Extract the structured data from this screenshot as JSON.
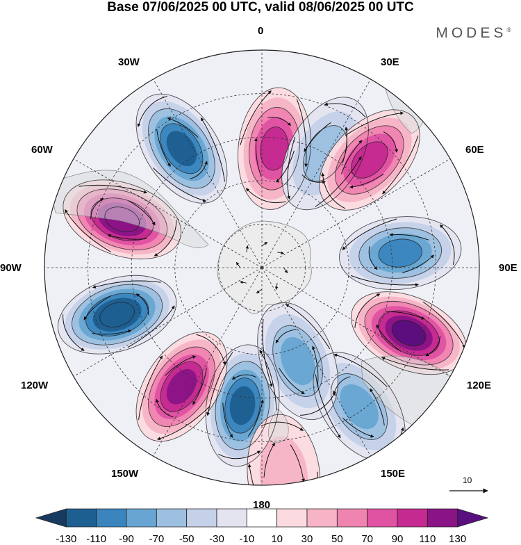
{
  "title": "Base 07/06/2025 00 UTC, valid 08/06/2025 00 UTC",
  "brand": "MODES",
  "brand_mark": "®",
  "longitude_labels": {
    "lon_0": "0",
    "lon_30E": "30E",
    "lon_60E": "60E",
    "lon_90E": "90E",
    "lon_120E": "120E",
    "lon_150E": "150E",
    "lon_180": "180",
    "lon_150W": "150W",
    "lon_120W": "120W",
    "lon_90W": "90W",
    "lon_60W": "60W",
    "lon_30W": "30W"
  },
  "vector_reference": {
    "value": "10"
  },
  "colorbar": {
    "ticks": [
      "-130",
      "-110",
      "-90",
      "-70",
      "-50",
      "-30",
      "-10",
      "10",
      "30",
      "50",
      "70",
      "90",
      "110",
      "130"
    ],
    "colors": [
      "#173a5e",
      "#1e5f91",
      "#3a85be",
      "#68a5d2",
      "#9dbfe0",
      "#c5d1e8",
      "#e4e4f1",
      "#ffffff",
      "#fbdbe0",
      "#f7b4c6",
      "#f084b1",
      "#e052a2",
      "#c42a8f",
      "#8a1485",
      "#5a0f7e"
    ]
  },
  "map": {
    "projection": "south-polar-stereographic",
    "land_color": "#e6e6e6",
    "anomaly_centers": [
      {
        "lon_deg": 188,
        "colat_frac": 0.64,
        "value": -110
      },
      {
        "lon_deg": 214,
        "colat_frac": 0.66,
        "value": 120
      },
      {
        "lon_deg": 252,
        "colat_frac": 0.7,
        "value": -125
      },
      {
        "lon_deg": 289,
        "colat_frac": 0.68,
        "value": 125
      },
      {
        "lon_deg": 326,
        "colat_frac": 0.66,
        "value": -110
      },
      {
        "lon_deg": 6,
        "colat_frac": 0.55,
        "value": 100
      },
      {
        "lon_deg": 29,
        "colat_frac": 0.6,
        "value": -50
      },
      {
        "lon_deg": 45,
        "colat_frac": 0.7,
        "value": 90
      },
      {
        "lon_deg": 84,
        "colat_frac": 0.64,
        "value": -95
      },
      {
        "lon_deg": 114,
        "colat_frac": 0.74,
        "value": 130
      },
      {
        "lon_deg": 145,
        "colat_frac": 0.78,
        "value": -80
      },
      {
        "lon_deg": 159,
        "colat_frac": 0.46,
        "value": -70
      },
      {
        "lon_deg": 174,
        "colat_frac": 0.96,
        "value": 40
      }
    ]
  }
}
